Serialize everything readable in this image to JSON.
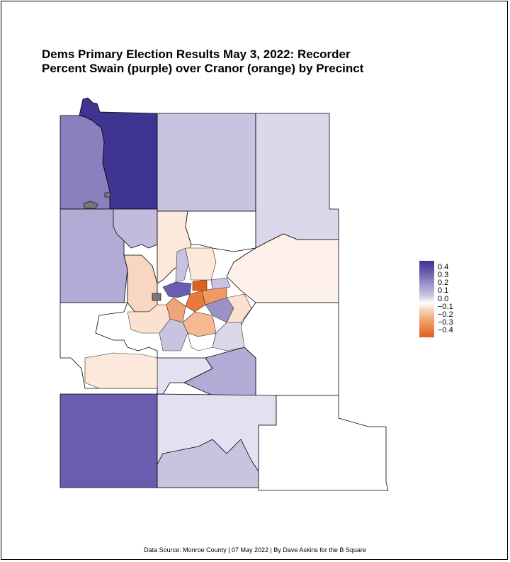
{
  "title": {
    "line1": "Dems Primary Election Results May 3, 2022: Recorder",
    "line2": "Percent Swain (purple) over Cranor (orange) by Precinct"
  },
  "legend": {
    "labels": [
      "0.4",
      "0.3",
      "0.2",
      "0.1",
      "0.0",
      "−0.1",
      "−0.2",
      "−0.3",
      "−0.4"
    ],
    "scale_min": -0.4,
    "scale_max": 0.4,
    "colors": {
      "high": "#3f3491",
      "mid": "#ffffff",
      "low": "#e0601a"
    }
  },
  "caption": "Data Source: Monroe County | 07 May 2022 | By Dave Askins for the B Square",
  "chart_data": {
    "type": "choropleth",
    "value_meaning": "Percent Swain over Cranor",
    "scale": [
      -0.4,
      0.4
    ],
    "precincts": [
      {
        "id": "nw-strip",
        "value": 0.4
      },
      {
        "id": "nw-west",
        "value": 0.25
      },
      {
        "id": "north-center",
        "value": 0.15
      },
      {
        "id": "northeast",
        "value": 0.1
      },
      {
        "id": "west-mid",
        "value": 0.18
      },
      {
        "id": "north-mid-left",
        "value": 0.2
      },
      {
        "id": "north-mid-pale",
        "value": -0.05
      },
      {
        "id": "north-mid-white",
        "value": 0.0
      },
      {
        "id": "east-mid",
        "value": -0.03
      },
      {
        "id": "west-west",
        "value": 0.0
      },
      {
        "id": "west-center-orange",
        "value": -0.1
      },
      {
        "id": "east-white",
        "value": 0.0
      },
      {
        "id": "south-west",
        "value": 0.32
      },
      {
        "id": "south-center",
        "value": 0.1
      },
      {
        "id": "south-center-2",
        "value": 0.2
      },
      {
        "id": "south-east",
        "value": 0.0
      },
      {
        "id": "south-mid-east",
        "value": 0.05
      },
      {
        "id": "urban-1",
        "value": -0.35
      },
      {
        "id": "urban-2",
        "value": -0.25
      },
      {
        "id": "urban-3",
        "value": -0.15
      },
      {
        "id": "urban-4",
        "value": 0.15
      },
      {
        "id": "urban-5",
        "value": -0.05
      },
      {
        "id": "urban-6",
        "value": 0.2
      }
    ]
  }
}
